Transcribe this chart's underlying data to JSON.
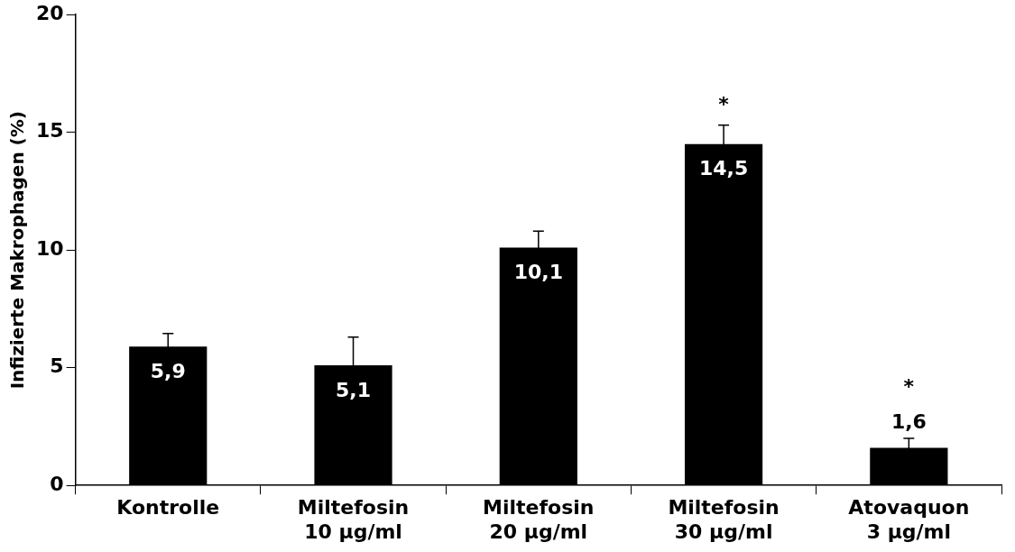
{
  "chart_data": {
    "type": "bar",
    "ylabel": "Infizierte Makrophagen (%)",
    "categories": [
      "Kontrolle",
      "Miltefosin\n10 µg/ml",
      "Miltefosin\n20 µg/ml",
      "Miltefosin\n30 µg/ml",
      "Atovaquon\n3 µg/ml"
    ],
    "values": [
      5.9,
      5.1,
      10.1,
      14.5,
      1.6
    ],
    "errors": [
      0.55,
      1.2,
      0.7,
      0.8,
      0.4
    ],
    "color": "#000000",
    "value_labels": [
      "5,9",
      "5,1",
      "10,1",
      "14,5",
      "1,6"
    ],
    "ylim": [
      0,
      20
    ],
    "yticks": [
      0,
      5,
      10,
      15,
      20
    ],
    "grid": false,
    "legend": false,
    "annotations": [
      {
        "text": "*",
        "x": "Miltefosin\n30 µg/ml",
        "y": 15.3
      },
      {
        "text": "*",
        "x": "Atovaquon\n3 µg/ml",
        "y": 2.0
      }
    ]
  }
}
